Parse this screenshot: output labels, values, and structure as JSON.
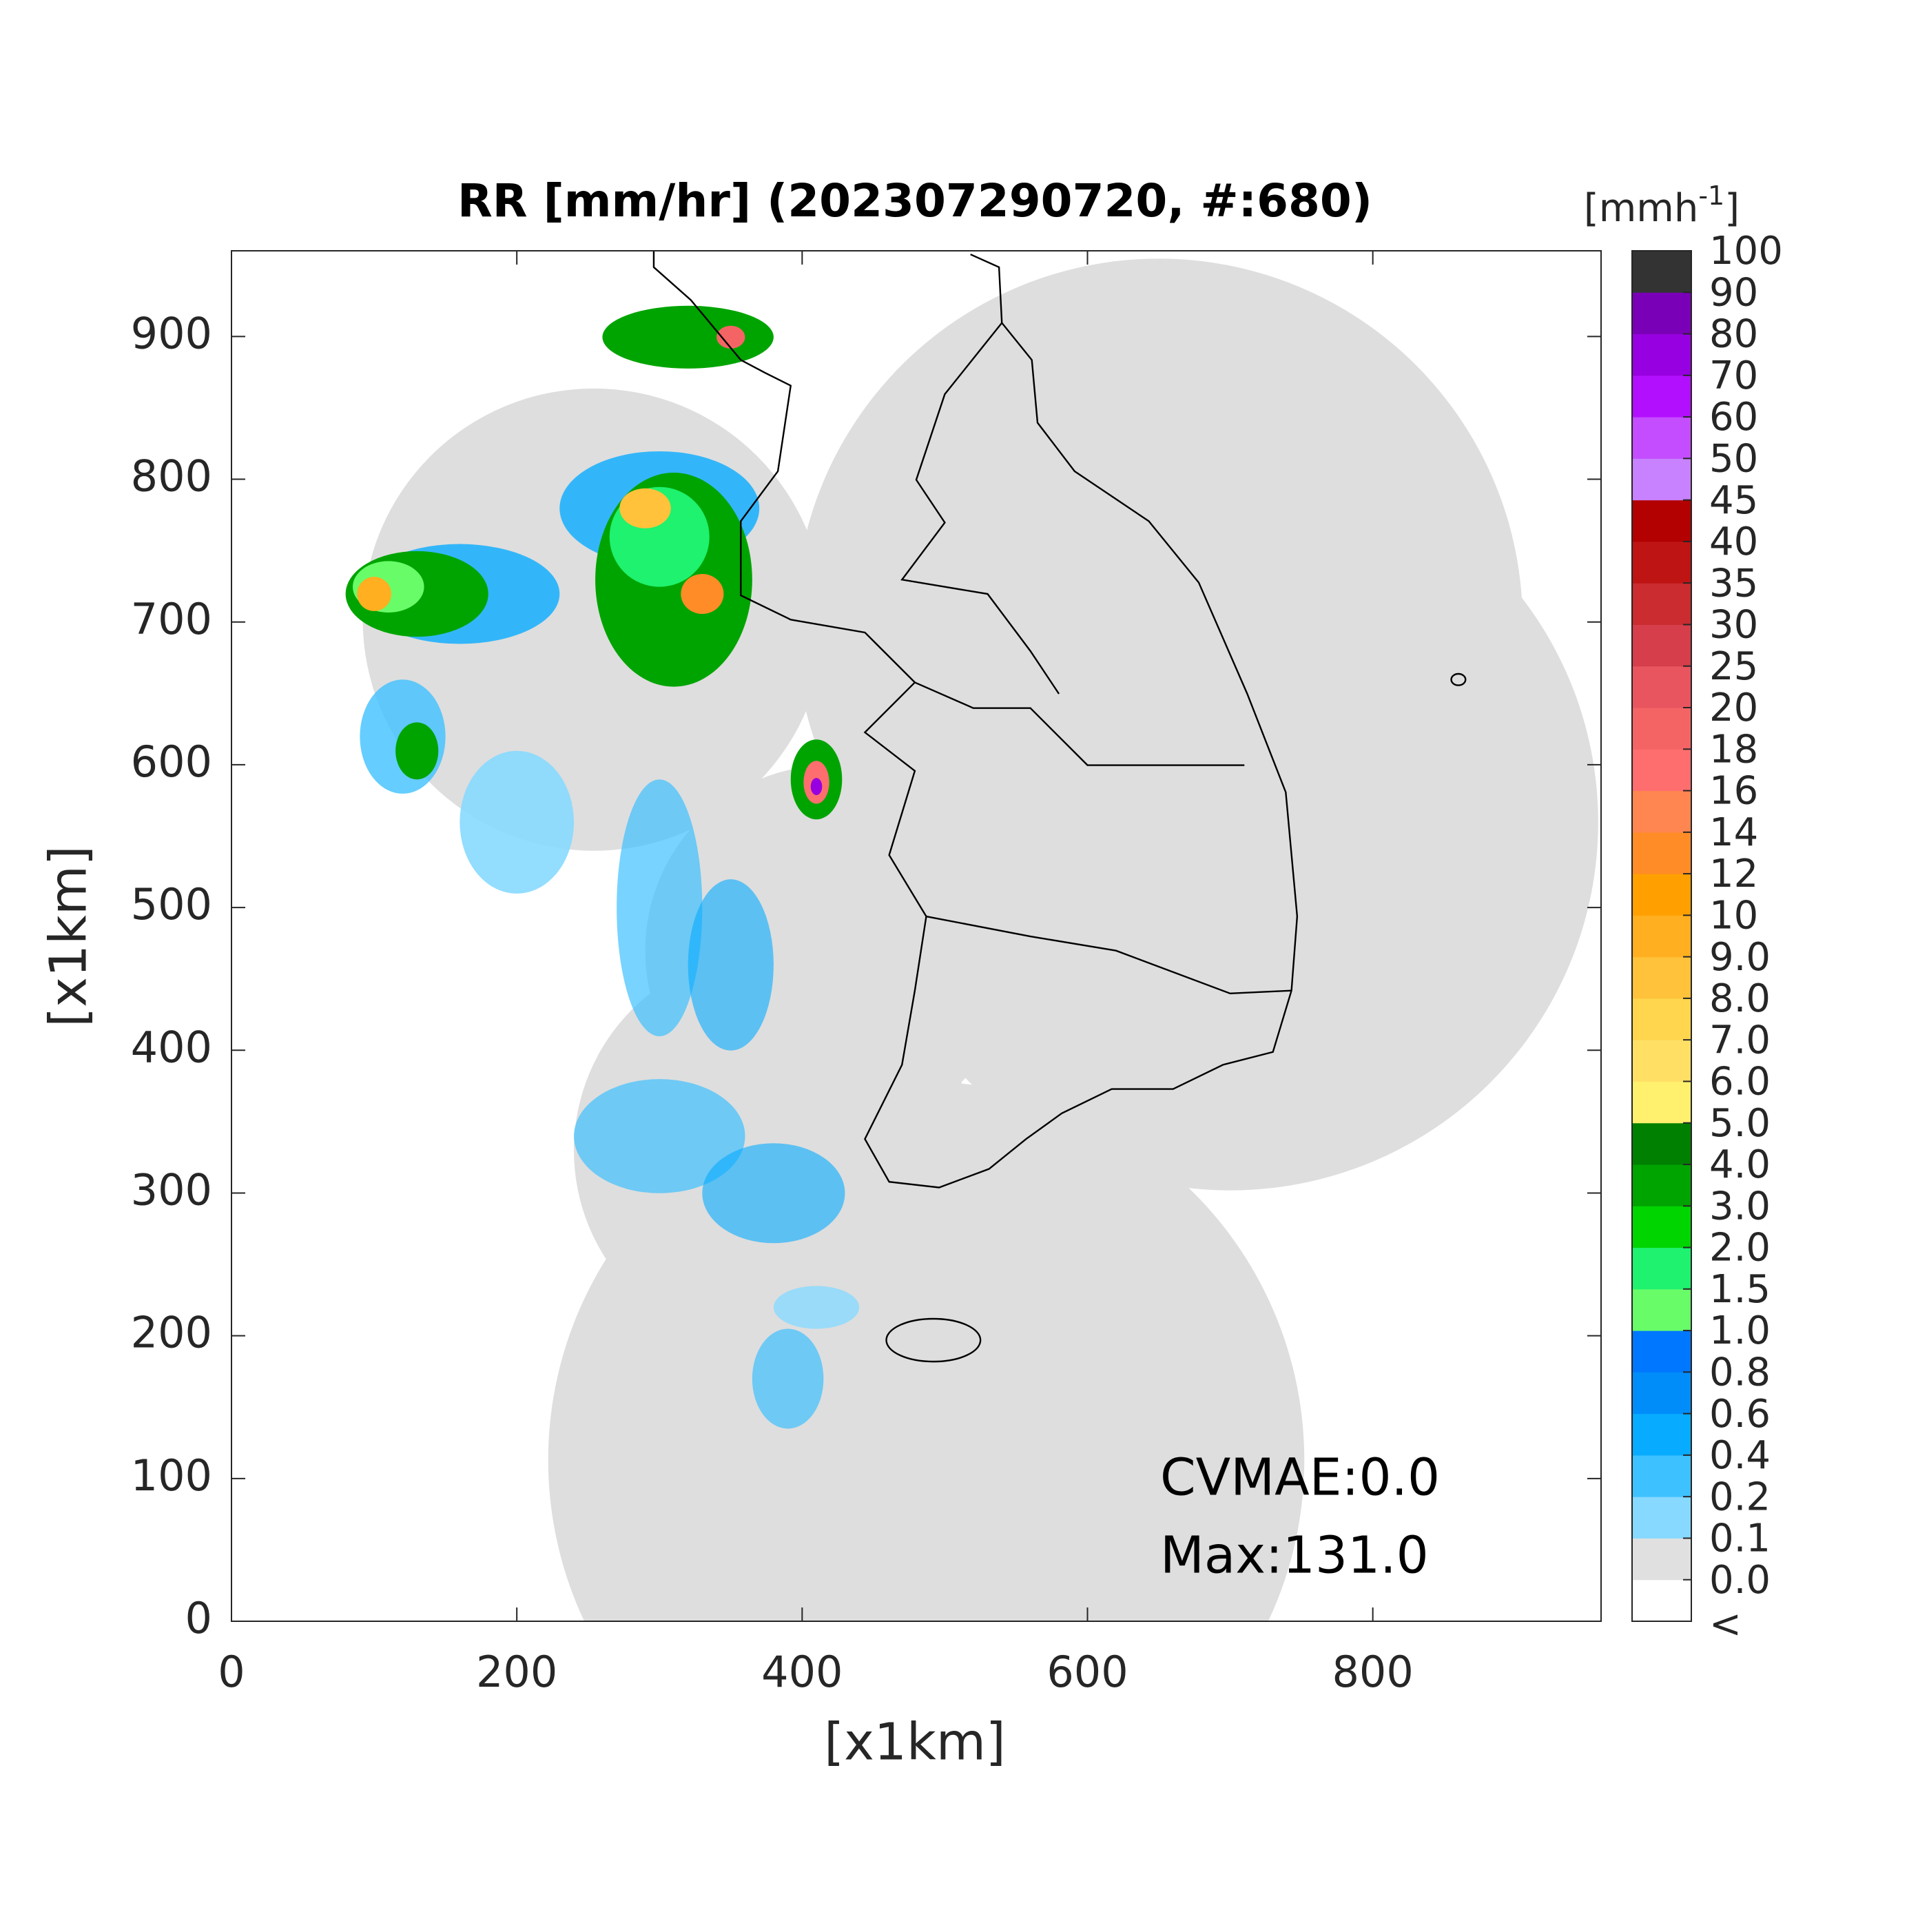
{
  "chart_data": {
    "type": "map",
    "title": "RR [mm/hr] (202307290720, #:680)",
    "xlabel": "[x1km]",
    "ylabel": "[x1km]",
    "xlim": [
      0,
      960
    ],
    "ylim": [
      0,
      960
    ],
    "xticks": [
      0,
      200,
      400,
      600,
      800
    ],
    "yticks": [
      0,
      100,
      200,
      300,
      400,
      500,
      600,
      700,
      800,
      900
    ],
    "annotations": [
      "CVMAE:0.0",
      "Max:131.0"
    ],
    "colorbar": {
      "unit": {
        "base": "[mmh",
        "exponent": "-1",
        "close": "]"
      },
      "below_label": "<",
      "ticks": [
        {
          "value": 0,
          "label": "0.0"
        },
        0.1,
        0.2,
        0.4,
        0.6,
        0.8,
        {
          "value": 1,
          "label": "1.0"
        },
        1.5,
        {
          "value": 2,
          "label": "2.0"
        },
        {
          "value": 3,
          "label": "3.0"
        },
        {
          "value": 4,
          "label": "4.0"
        },
        {
          "value": 5,
          "label": "5.0"
        },
        {
          "value": 6,
          "label": "6.0"
        },
        {
          "value": 7,
          "label": "7.0"
        },
        {
          "value": 8,
          "label": "8.0"
        },
        {
          "value": 9,
          "label": "9.0"
        },
        10,
        12,
        14,
        16,
        18,
        20,
        25,
        30,
        35,
        40,
        45,
        50,
        60,
        70,
        80,
        90,
        100
      ],
      "colors": [
        "#ffffff",
        "#e0e0e0",
        "#87d9ff",
        "#3ec1ff",
        "#07abff",
        "#008dfa",
        "#0077ff",
        "#69fc69",
        "#1ef26e",
        "#00d500",
        "#00a400",
        "#008000",
        "#fff06e",
        "#ffe065",
        "#ffd64d",
        "#ffc23a",
        "#ffaf1f",
        "#ffa000",
        "#ff8c26",
        "#ff8650",
        "#ff6e6e",
        "#f56464",
        "#e8555f",
        "#d53e4a",
        "#ca2c30",
        "#be1414",
        "#b30000",
        "#c882ff",
        "#c44dff",
        "#b30fff",
        "#9700e0",
        "#7a00b8",
        "#333333"
      ]
    }
  }
}
